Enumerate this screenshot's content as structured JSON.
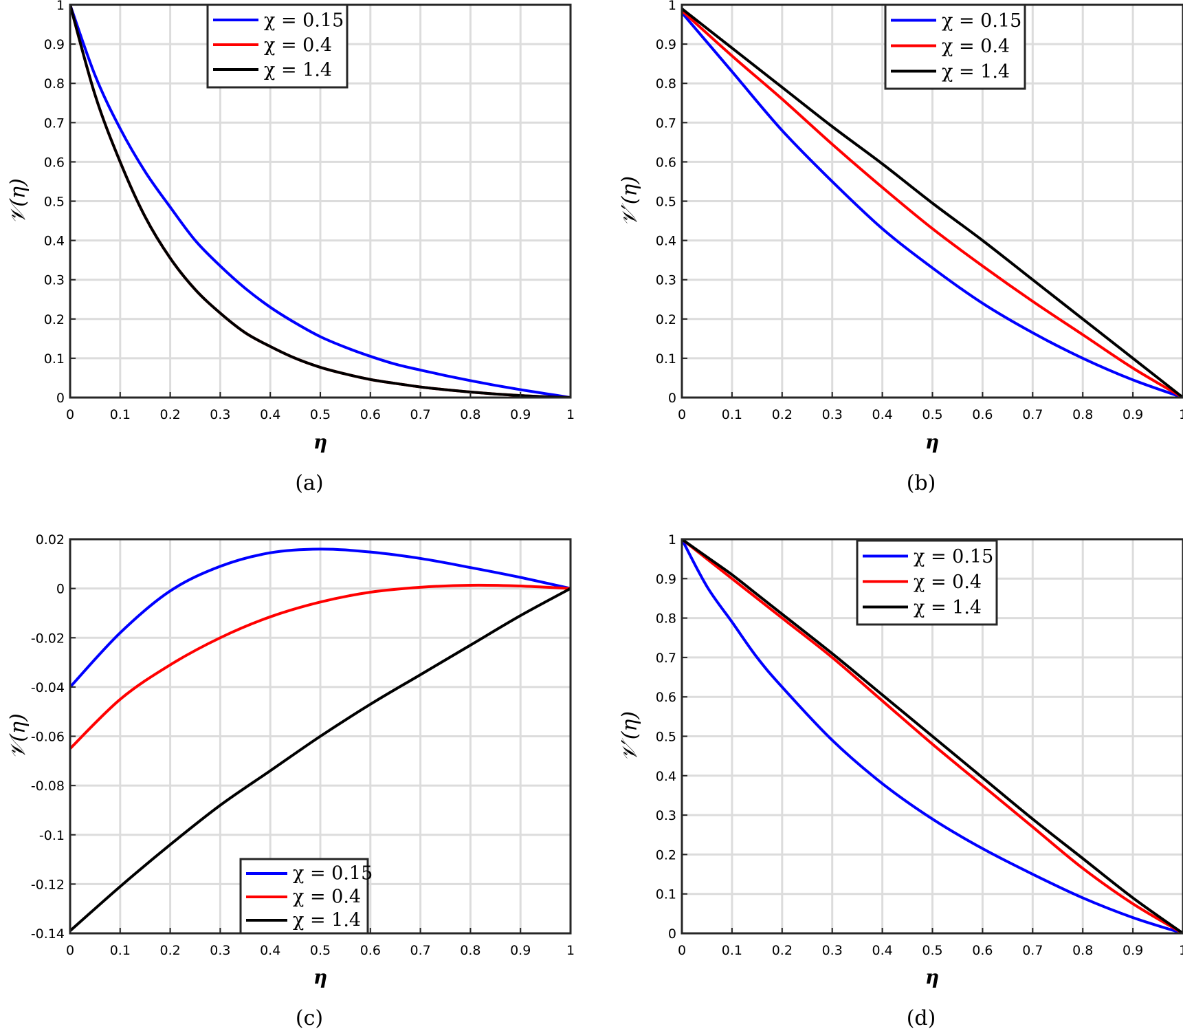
{
  "colors": {
    "blue": "#0000ff",
    "red": "#ff0000",
    "black": "#000000",
    "grid": "#dcdcdc"
  },
  "chart_data": [
    {
      "id": "a",
      "type": "line",
      "caption": "(a)",
      "xlabel": "η",
      "ylabel": "𝒱(η)",
      "xlim": [
        0,
        1
      ],
      "ylim": [
        0,
        1
      ],
      "xticks": [
        0,
        0.1,
        0.2,
        0.3,
        0.4,
        0.5,
        0.6,
        0.7,
        0.8,
        0.9,
        1
      ],
      "yticks": [
        0,
        0.1,
        0.2,
        0.3,
        0.4,
        0.5,
        0.6,
        0.7,
        0.8,
        0.9,
        1
      ],
      "xtick_labels": [
        "0",
        "0.1",
        "0.2",
        "0.3",
        "0.4",
        "0.5",
        "0.6",
        "0.7",
        "0.8",
        "0.9",
        "1"
      ],
      "ytick_labels": [
        "0",
        "0.1",
        "0.2",
        "0.3",
        "0.4",
        "0.5",
        "0.6",
        "0.7",
        "0.8",
        "0.9",
        "1"
      ],
      "grid": true,
      "legend": "top-center",
      "x": [
        0,
        0.05,
        0.1,
        0.15,
        0.2,
        0.25,
        0.3,
        0.35,
        0.4,
        0.45,
        0.5,
        0.55,
        0.6,
        0.65,
        0.7,
        0.75,
        0.8,
        0.85,
        0.9,
        0.95,
        1
      ],
      "series": [
        {
          "name": "χ = 0.15",
          "color": "#0000ff",
          "values": [
            1,
            0.82,
            0.685,
            0.575,
            0.485,
            0.4,
            0.335,
            0.278,
            0.23,
            0.19,
            0.155,
            0.128,
            0.105,
            0.085,
            0.07,
            0.056,
            0.043,
            0.031,
            0.02,
            0.01,
            0
          ]
        },
        {
          "name": "χ = 0.4",
          "color": "#ff0000",
          "values": [
            1,
            0.77,
            0.6,
            0.46,
            0.355,
            0.275,
            0.215,
            0.165,
            0.13,
            0.1,
            0.077,
            0.06,
            0.046,
            0.036,
            0.027,
            0.02,
            0.014,
            0.009,
            0.005,
            0.002,
            0
          ]
        },
        {
          "name": "χ = 1.4",
          "color": "#000000",
          "values": [
            1,
            0.77,
            0.6,
            0.46,
            0.355,
            0.275,
            0.215,
            0.165,
            0.13,
            0.1,
            0.077,
            0.06,
            0.046,
            0.036,
            0.027,
            0.02,
            0.014,
            0.009,
            0.005,
            0.002,
            0
          ]
        }
      ]
    },
    {
      "id": "b",
      "type": "line",
      "caption": "(b)",
      "xlabel": "η",
      "ylabel": "𝒱′(η)",
      "xlim": [
        0,
        1
      ],
      "ylim": [
        0,
        1
      ],
      "xticks": [
        0,
        0.1,
        0.2,
        0.3,
        0.4,
        0.5,
        0.6,
        0.7,
        0.8,
        0.9,
        1
      ],
      "yticks": [
        0,
        0.1,
        0.2,
        0.3,
        0.4,
        0.5,
        0.6,
        0.7,
        0.8,
        0.9,
        1
      ],
      "xtick_labels": [
        "0",
        "0.1",
        "0.2",
        "0.3",
        "0.4",
        "0.5",
        "0.6",
        "0.7",
        "0.8",
        "0.9",
        "1"
      ],
      "ytick_labels": [
        "0",
        "0.1",
        "0.2",
        "0.3",
        "0.4",
        "0.5",
        "0.6",
        "0.7",
        "0.8",
        "0.9",
        "1"
      ],
      "grid": true,
      "legend": "top-center",
      "x": [
        0,
        0.1,
        0.2,
        0.3,
        0.4,
        0.5,
        0.6,
        0.7,
        0.8,
        0.9,
        1
      ],
      "series": [
        {
          "name": "χ = 0.15",
          "color": "#0000ff",
          "values": [
            0.98,
            0.83,
            0.68,
            0.55,
            0.43,
            0.33,
            0.24,
            0.165,
            0.1,
            0.045,
            0
          ]
        },
        {
          "name": "χ = 0.4",
          "color": "#ff0000",
          "values": [
            0.985,
            0.87,
            0.76,
            0.645,
            0.535,
            0.43,
            0.335,
            0.245,
            0.16,
            0.075,
            0
          ]
        },
        {
          "name": "χ = 1.4",
          "color": "#000000",
          "values": [
            0.99,
            0.89,
            0.79,
            0.69,
            0.595,
            0.495,
            0.4,
            0.3,
            0.2,
            0.1,
            0
          ]
        }
      ]
    },
    {
      "id": "c",
      "type": "line",
      "caption": "(c)",
      "xlabel": "η",
      "ylabel": "𝒱(η)",
      "xlim": [
        0,
        1
      ],
      "ylim": [
        -0.14,
        0.02
      ],
      "xticks": [
        0,
        0.1,
        0.2,
        0.3,
        0.4,
        0.5,
        0.6,
        0.7,
        0.8,
        0.9,
        1
      ],
      "yticks": [
        -0.14,
        -0.12,
        -0.1,
        -0.08,
        -0.06,
        -0.04,
        -0.02,
        0,
        0.02
      ],
      "xtick_labels": [
        "0",
        "0.1",
        "0.2",
        "0.3",
        "0.4",
        "0.5",
        "0.6",
        "0.7",
        "0.8",
        "0.9",
        "1"
      ],
      "ytick_labels": [
        "-0.14",
        "-0.12",
        "-0.1",
        "-0.08",
        "-0.06",
        "-0.04",
        "-0.02",
        "0",
        "0.02"
      ],
      "grid": true,
      "legend": "bottom-center",
      "x": [
        0,
        0.1,
        0.2,
        0.3,
        0.4,
        0.5,
        0.6,
        0.7,
        0.8,
        0.9,
        1
      ],
      "series": [
        {
          "name": "χ = 0.15",
          "color": "#0000ff",
          "values": [
            -0.04,
            -0.018,
            -0.001,
            0.009,
            0.0145,
            0.016,
            0.0148,
            0.0122,
            0.0085,
            0.0045,
            0
          ]
        },
        {
          "name": "χ = 0.4",
          "color": "#ff0000",
          "values": [
            -0.065,
            -0.045,
            -0.031,
            -0.02,
            -0.0115,
            -0.0055,
            -0.0015,
            0.0005,
            0.0013,
            0.001,
            0
          ]
        },
        {
          "name": "χ = 1.4",
          "color": "#000000",
          "values": [
            -0.139,
            -0.121,
            -0.104,
            -0.088,
            -0.074,
            -0.06,
            -0.047,
            -0.035,
            -0.023,
            -0.011,
            0
          ]
        }
      ]
    },
    {
      "id": "d",
      "type": "line",
      "caption": "(d)",
      "xlabel": "η",
      "ylabel": "𝒱′(η)",
      "xlim": [
        0,
        1
      ],
      "ylim": [
        0,
        1
      ],
      "xticks": [
        0,
        0.1,
        0.2,
        0.3,
        0.4,
        0.5,
        0.6,
        0.7,
        0.8,
        0.9,
        1
      ],
      "yticks": [
        0,
        0.1,
        0.2,
        0.3,
        0.4,
        0.5,
        0.6,
        0.7,
        0.8,
        0.9,
        1
      ],
      "xtick_labels": [
        "0",
        "0.1",
        "0.2",
        "0.3",
        "0.4",
        "0.5",
        "0.6",
        "0.7",
        "0.8",
        "0.9",
        "1"
      ],
      "ytick_labels": [
        "0",
        "0.1",
        "0.2",
        "0.3",
        "0.4",
        "0.5",
        "0.6",
        "0.7",
        "0.8",
        "0.9",
        "1"
      ],
      "grid": true,
      "legend": "top-center",
      "x": [
        0,
        0.05,
        0.1,
        0.15,
        0.2,
        0.3,
        0.4,
        0.5,
        0.6,
        0.7,
        0.8,
        0.9,
        1
      ],
      "series": [
        {
          "name": "χ = 0.15",
          "color": "#0000ff",
          "values": [
            1,
            0.88,
            0.79,
            0.7,
            0.625,
            0.49,
            0.38,
            0.29,
            0.215,
            0.15,
            0.09,
            0.04,
            0
          ]
        },
        {
          "name": "χ = 0.4",
          "color": "#ff0000",
          "values": [
            1,
            0.95,
            0.9,
            0.85,
            0.8,
            0.7,
            0.59,
            0.48,
            0.375,
            0.27,
            0.165,
            0.075,
            0
          ]
        },
        {
          "name": "χ = 1.4",
          "color": "#000000",
          "values": [
            1,
            0.955,
            0.91,
            0.86,
            0.81,
            0.71,
            0.605,
            0.5,
            0.395,
            0.29,
            0.19,
            0.09,
            0
          ]
        }
      ]
    }
  ]
}
